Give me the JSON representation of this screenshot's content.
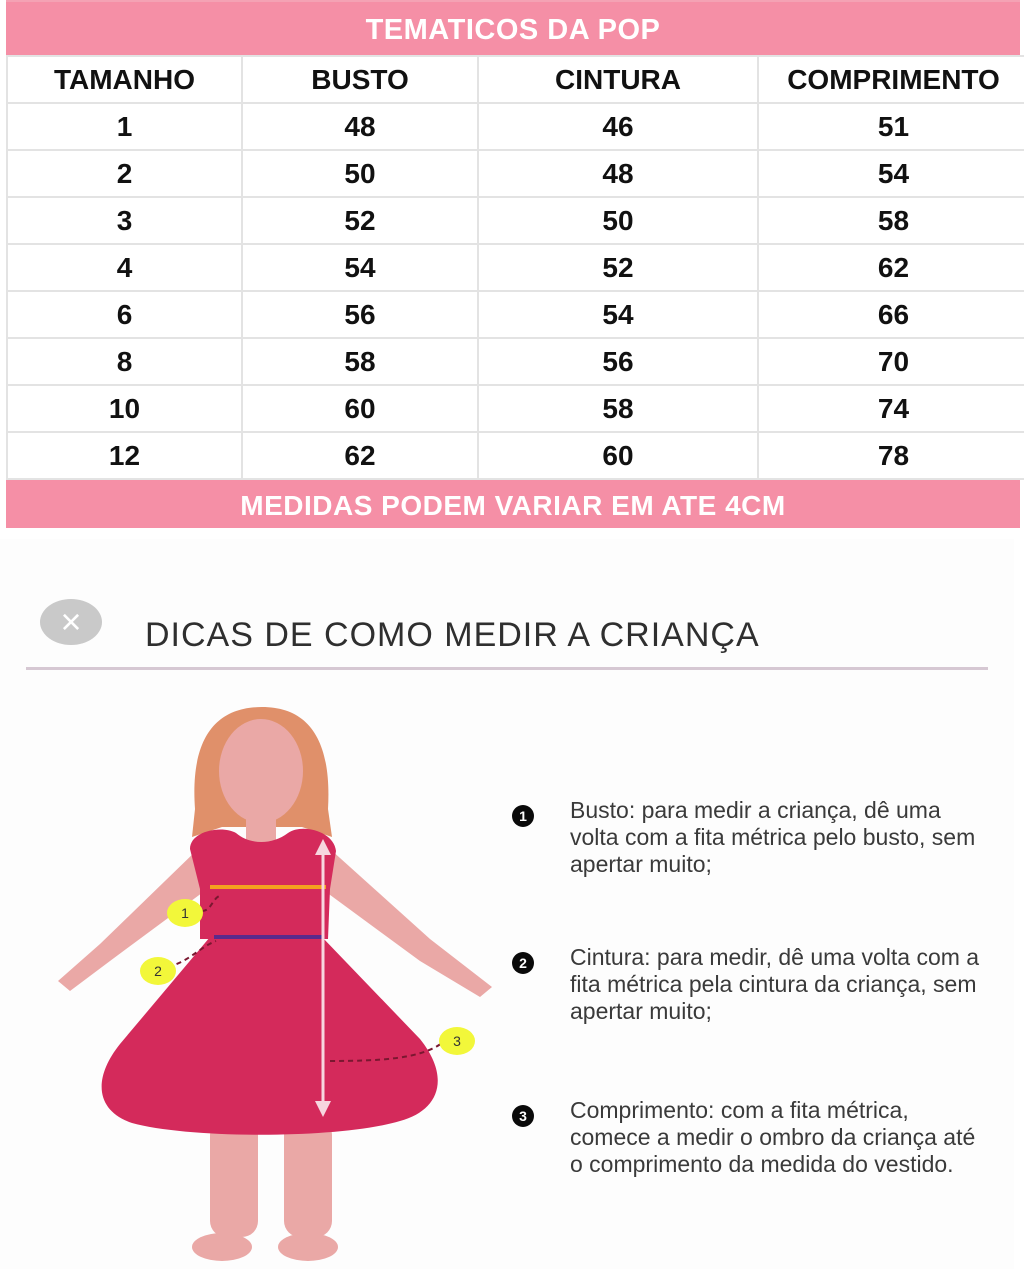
{
  "header": {
    "title": "TEMATICOS DA POP"
  },
  "table": {
    "columns": [
      "TAMANHO",
      "BUSTO",
      "CINTURA",
      "COMPRIMENTO"
    ],
    "rows": [
      [
        "1",
        "48",
        "46",
        "51"
      ],
      [
        "2",
        "50",
        "48",
        "54"
      ],
      [
        "3",
        "52",
        "50",
        "58"
      ],
      [
        "4",
        "54",
        "52",
        "62"
      ],
      [
        "6",
        "56",
        "54",
        "66"
      ],
      [
        "8",
        "58",
        "56",
        "70"
      ],
      [
        "10",
        "60",
        "58",
        "74"
      ],
      [
        "12",
        "62",
        "60",
        "78"
      ]
    ]
  },
  "note": "MEDIDAS PODEM VARIAR EM ATE 4CM",
  "tips": {
    "close_icon": "×",
    "title": "DICAS DE COMO MEDIR A CRIANÇA",
    "items": [
      {
        "number": "1",
        "text": "Busto: para medir a criança, dê uma volta com a fita métrica pelo busto, sem apertar muito;"
      },
      {
        "number": "2",
        "text": "Cintura: para medir, dê uma volta com a fita métrica pela cintura da criança, sem apertar muito;"
      },
      {
        "number": "3",
        "text": "Comprimento: com a fita métrica, comece a medir o ombro da criança até o comprimento da medida do vestido."
      }
    ],
    "figure_labels": [
      "1",
      "2",
      "3"
    ]
  },
  "colors": {
    "accent": "#f58fa6",
    "dress": "#d42a5b",
    "skin": "#eaa8a6",
    "hair": "#e0906a"
  }
}
